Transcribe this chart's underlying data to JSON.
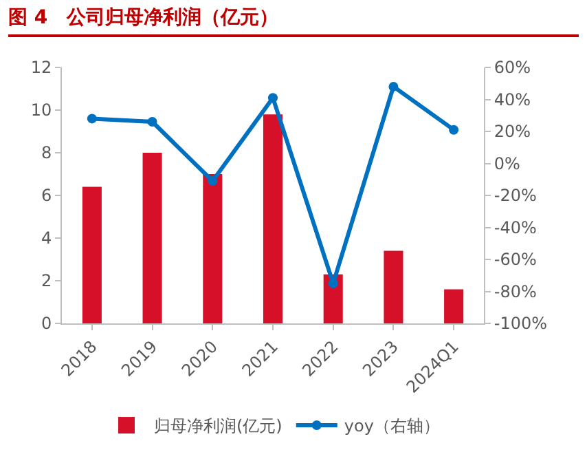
{
  "chart_data": {
    "type": "bar",
    "title": "图 4　公司归母净利润（亿元）",
    "categories": [
      "2018",
      "2019",
      "2020",
      "2021",
      "2022",
      "2023",
      "2024Q1"
    ],
    "series": [
      {
        "name": "归母净利润(亿元)",
        "color": "#d7102a",
        "values": [
          6.4,
          8.0,
          7.0,
          9.8,
          2.3,
          3.4,
          1.6
        ]
      },
      {
        "name": "yoy（右轴）",
        "type": "line",
        "axis": "y2",
        "color": "#0070c0",
        "marker": "circle",
        "values": [
          28,
          26,
          -11,
          41,
          -75,
          48,
          21
        ]
      }
    ],
    "ylim": [
      0,
      12
    ],
    "yticks": [
      0,
      2,
      4,
      6,
      8,
      10,
      12
    ],
    "y2lim": [
      -100,
      60
    ],
    "y2ticks": [
      {
        "value": -100,
        "label": "-100%"
      },
      {
        "value": -80,
        "label": "-80%"
      },
      {
        "value": -60,
        "label": "-60%"
      },
      {
        "value": -40,
        "label": "-40%"
      },
      {
        "value": -20,
        "label": "-20%"
      },
      {
        "value": 0,
        "label": "0%"
      },
      {
        "value": 20,
        "label": "20%"
      },
      {
        "value": 40,
        "label": "40%"
      },
      {
        "value": 60,
        "label": "60%"
      }
    ],
    "grid": false,
    "legend": "bottom"
  }
}
